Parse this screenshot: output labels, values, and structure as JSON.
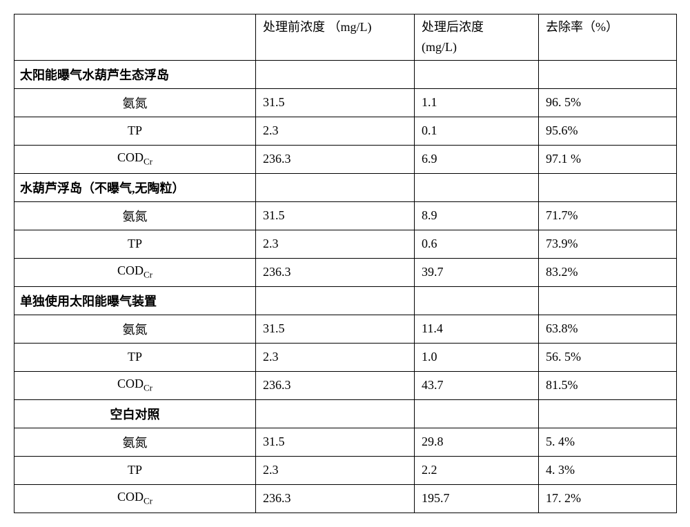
{
  "headers": {
    "param": "",
    "before": "处理前浓度 （mg/L)",
    "after_line1": "处理后浓度",
    "after_line2": "(mg/L)",
    "rate": "去除率（%）"
  },
  "sections": [
    {
      "title": "太阳能曝气水葫芦生态浮岛",
      "align": "left",
      "rows": [
        {
          "param": "氨氮",
          "before": "31.5",
          "after": "1.1",
          "rate": "96. 5%"
        },
        {
          "param": "TP",
          "before": "2.3",
          "after": "0.1",
          "rate": "95.6%"
        },
        {
          "param_html": "COD<sub>Cr</sub>",
          "before": "236.3",
          "after": "6.9",
          "rate": "97.1 %"
        }
      ]
    },
    {
      "title": "水葫芦浮岛（不曝气,无陶粒）",
      "align": "left",
      "rows": [
        {
          "param": "氨氮",
          "before": "31.5",
          "after": "8.9",
          "rate": "71.7%"
        },
        {
          "param": "TP",
          "before": "2.3",
          "after": "0.6",
          "rate": "73.9%"
        },
        {
          "param_html": "COD<sub>Cr</sub>",
          "before": "236.3",
          "after": "39.7",
          "rate": "83.2%"
        }
      ]
    },
    {
      "title": "单独使用太阳能曝气装置",
      "align": "left",
      "rows": [
        {
          "param": "氨氮",
          "before": "31.5",
          "after": "11.4",
          "rate": "63.8%"
        },
        {
          "param": "TP",
          "before": "2.3",
          "after": "1.0",
          "rate": "56. 5%"
        },
        {
          "param_html": "COD<sub>Cr</sub>",
          "before": "236.3",
          "after": "43.7",
          "rate": "81.5%"
        }
      ]
    },
    {
      "title": "空白对照",
      "align": "center",
      "rows": [
        {
          "param": "氨氮",
          "before": "31.5",
          "after": "29.8",
          "rate": "5. 4%"
        },
        {
          "param": "TP",
          "before": "2.3",
          "after": "2.2",
          "rate": "4. 3%"
        },
        {
          "param_html": "COD<sub>Cr</sub>",
          "before": "236.3",
          "after": "195.7",
          "rate": "17. 2%"
        }
      ]
    }
  ]
}
